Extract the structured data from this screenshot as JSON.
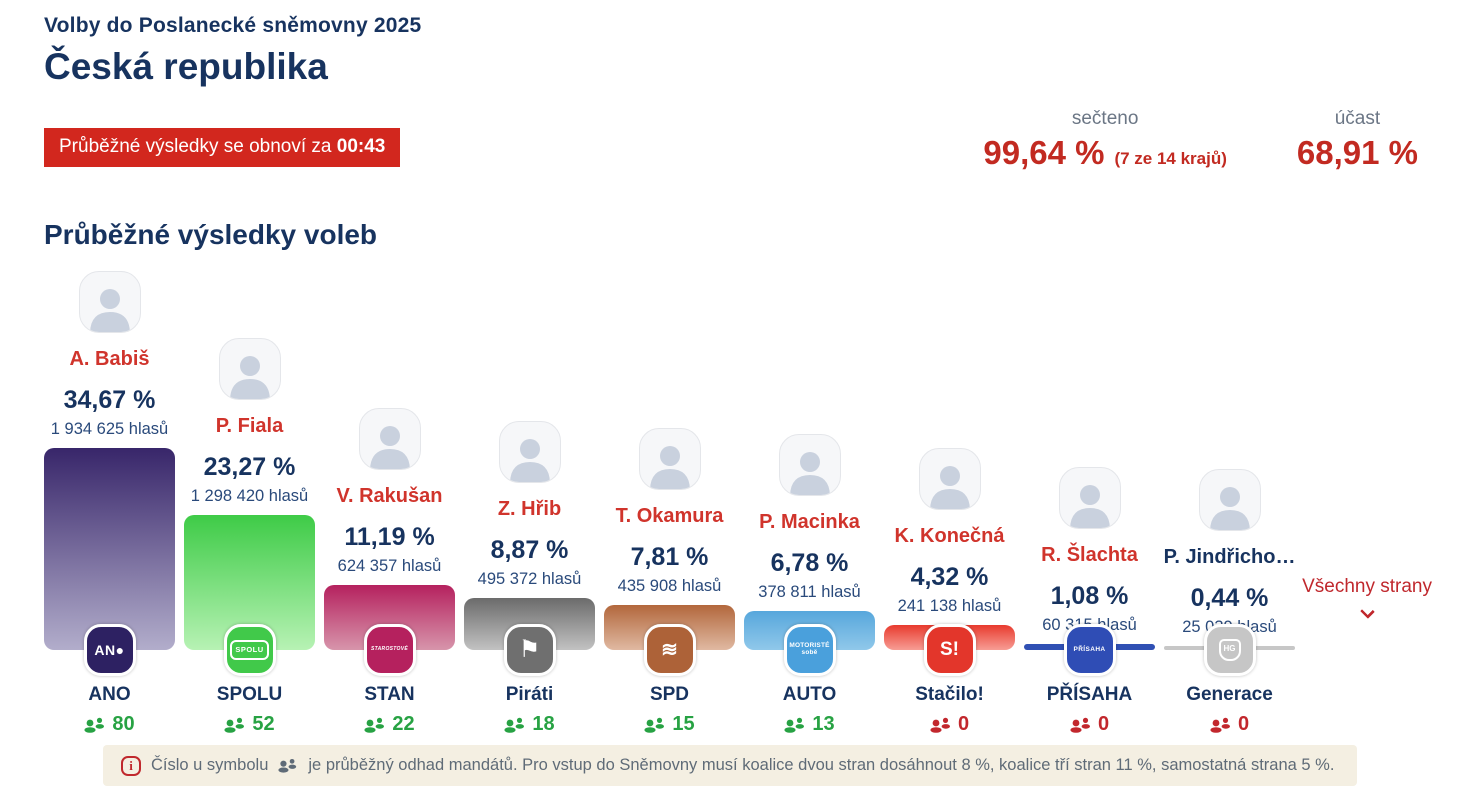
{
  "header": {
    "supertitle": "Volby do Poslanecké sněmovny 2025",
    "title": "Česká republika",
    "countdown_prefix": "Průběžné výsledky se obnoví za ",
    "countdown_time": "00:43"
  },
  "stats": {
    "counted_label": "sečteno",
    "counted_value": "99,64 %",
    "counted_note": "(7 ze 14 krajů)",
    "turnout_label": "účast",
    "turnout_value": "68,91 %"
  },
  "section_title": "Průběžné výsledky voleb",
  "all_parties_link": "Všechny strany",
  "colors": {
    "navy": "#17335f",
    "red": "#c0282d",
    "green_mandates": "#27a243",
    "banner_red": "#d2271e"
  },
  "parties": [
    {
      "leader": "A. Babiš",
      "leader_color": "#d0342c",
      "percent": "34,67 %",
      "percent_value": 34.67,
      "votes": "1 934 625 hlasů",
      "party": "ANO",
      "mandates": "80",
      "mandates_color": "#27a243",
      "bar_top": "#38266a",
      "bar_bottom": "#b2adcb",
      "logo_bg": "#2d2162",
      "logo_text": "AN●",
      "logo_style": "st-ano",
      "logo_name": "ano-logo"
    },
    {
      "leader": "P. Fiala",
      "leader_color": "#d0342c",
      "percent": "23,27 %",
      "percent_value": 23.27,
      "votes": "1 298 420 hlasů",
      "party": "SPOLU",
      "mandates": "52",
      "mandates_color": "#27a243",
      "bar_top": "#3ecb47",
      "bar_bottom": "#b7f2b4",
      "logo_bg": "#41c94a",
      "logo_text": "SPOLU",
      "logo_style": "st-spolu",
      "logo_name": "spolu-logo"
    },
    {
      "leader": "V. Rakušan",
      "leader_color": "#d0342c",
      "percent": "11,19 %",
      "percent_value": 11.19,
      "votes": "624 357 hlasů",
      "party": "STAN",
      "mandates": "22",
      "mandates_color": "#27a243",
      "bar_top": "#b5215e",
      "bar_bottom": "#d795ab",
      "logo_bg": "#b5215e",
      "logo_text": "STAROSTOVÉ",
      "logo_style": "st-stan",
      "logo_name": "stan-logo"
    },
    {
      "leader": "Z. Hřib",
      "leader_color": "#d0342c",
      "percent": "8,87 %",
      "percent_value": 8.87,
      "votes": "495 372 hlasů",
      "party": "Piráti",
      "mandates": "18",
      "mandates_color": "#27a243",
      "bar_top": "#6b6b6b",
      "bar_bottom": "#c2c2c2",
      "logo_bg": "#6f6f6f",
      "logo_text": "⚑",
      "logo_style": "st-flag",
      "logo_name": "pirati-logo"
    },
    {
      "leader": "T. Okamura",
      "leader_color": "#d0342c",
      "percent": "7,81 %",
      "percent_value": 7.81,
      "votes": "435 908 hlasů",
      "party": "SPD",
      "mandates": "15",
      "mandates_color": "#27a243",
      "bar_top": "#b2673c",
      "bar_bottom": "#e0b9a2",
      "logo_bg": "#ad6238",
      "logo_text": "≋",
      "logo_style": "st-wave",
      "logo_name": "spd-logo"
    },
    {
      "leader": "P. Macinka",
      "leader_color": "#d0342c",
      "percent": "6,78 %",
      "percent_value": 6.78,
      "votes": "378 811 hlasů",
      "party": "AUTO",
      "mandates": "13",
      "mandates_color": "#27a243",
      "bar_top": "#57a7dc",
      "bar_bottom": "#90c8ea",
      "logo_bg": "#4aa0dc",
      "logo_text": "MOTORISTÉ\nsobě",
      "logo_style": "st-auto",
      "logo_name": "motoriste-logo"
    },
    {
      "leader": "K. Konečná",
      "leader_color": "#d0342c",
      "percent": "4,32 %",
      "percent_value": 4.32,
      "votes": "241 138 hlasů",
      "party": "Stačilo!",
      "mandates": "0",
      "mandates_color": "#c2272d",
      "bar_top": "#e83a2e",
      "bar_bottom": "#f79d94",
      "logo_bg": "#e3362b",
      "logo_text": "S!",
      "logo_style": "st-big",
      "logo_name": "stacilo-logo"
    },
    {
      "leader": "R. Šlachta",
      "leader_color": "#d0342c",
      "percent": "1,08 %",
      "percent_value": 1.08,
      "votes": "60 315 hlasů",
      "party": "PŘÍSAHA",
      "mandates": "0",
      "mandates_color": "#c2272d",
      "bar_top": "#3050b4",
      "bar_bottom": "#3050b4",
      "logo_bg": "#2f4db5",
      "logo_text": "PŘÍSAHA",
      "logo_style": "st-prisaha",
      "logo_name": "prisaha-logo"
    },
    {
      "leader": "P. Jindřicho…",
      "leader_color": "#17335f",
      "percent": "0,44 %",
      "percent_value": 0.44,
      "votes": "25 039 hlasů",
      "party": "Generace",
      "mandates": "0",
      "mandates_color": "#c2272d",
      "bar_top": "#c7c7c7",
      "bar_bottom": "#c7c7c7",
      "logo_bg": "#c6c6c6",
      "logo_text": "HG",
      "logo_style": "st-shield",
      "logo_name": "generace-logo"
    }
  ],
  "info_bar": {
    "text_before_icon": "Číslo u symbolu",
    "text_after_icon": "je průběžný odhad mandátů. Pro vstup do Sněmovny musí koalice dvou stran dosáhnout 8 %, koalice tří stran 11 %, samostatná strana 5 %."
  },
  "chart_data": {
    "type": "bar",
    "title": "Průběžné výsledky voleb",
    "categories": [
      "ANO",
      "SPOLU",
      "STAN",
      "Piráti",
      "SPD",
      "AUTO",
      "Stačilo!",
      "PŘÍSAHA",
      "Generace"
    ],
    "series": [
      {
        "name": "percent",
        "values": [
          34.67,
          23.27,
          11.19,
          8.87,
          7.81,
          6.78,
          4.32,
          1.08,
          0.44
        ]
      },
      {
        "name": "votes",
        "values": [
          1934625,
          1298420,
          624357,
          495372,
          435908,
          378811,
          241138,
          60315,
          25039
        ]
      },
      {
        "name": "mandates",
        "values": [
          80,
          52,
          22,
          18,
          15,
          13,
          0,
          0,
          0
        ]
      }
    ],
    "leaders": [
      "A. Babiš",
      "P. Fiala",
      "V. Rakušan",
      "Z. Hřib",
      "T. Okamura",
      "P. Macinka",
      "K. Konečná",
      "R. Šlachta",
      "P. Jindřicho…"
    ],
    "ylim": [
      0,
      35
    ],
    "grid": false,
    "legend_position": "none"
  }
}
